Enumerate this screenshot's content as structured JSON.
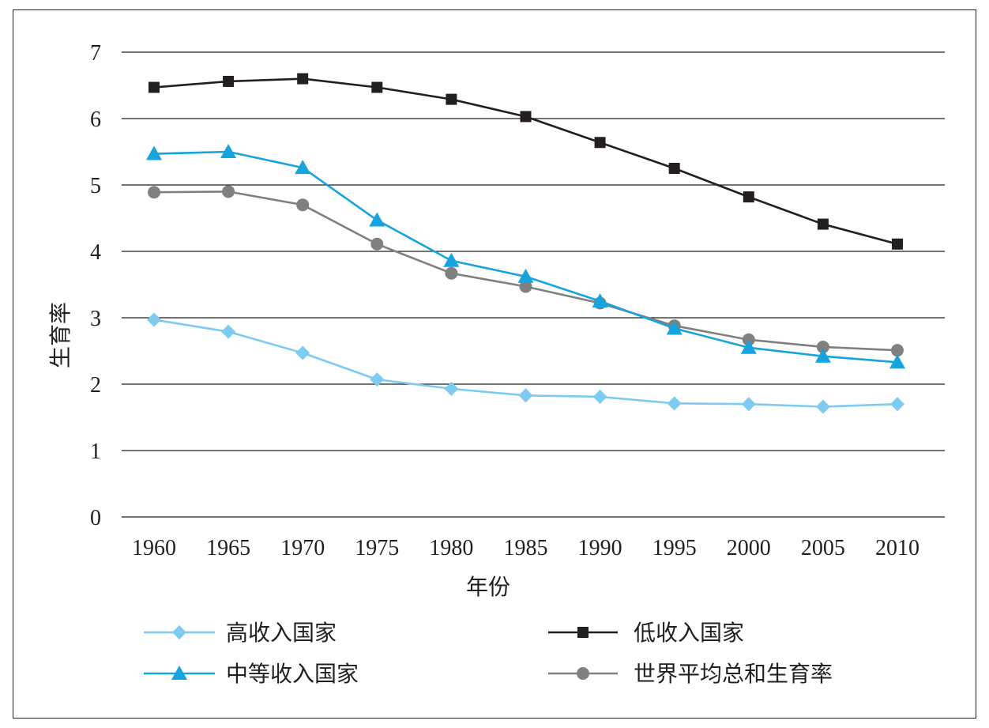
{
  "chart_data": {
    "type": "line",
    "title": "",
    "xlabel": "年份",
    "ylabel": "生育率",
    "categories": [
      "1960",
      "1965",
      "1970",
      "1975",
      "1980",
      "1985",
      "1990",
      "1995",
      "2000",
      "2005",
      "2010"
    ],
    "ylim": [
      0,
      7
    ],
    "yticks": [
      "0",
      "1",
      "2",
      "3",
      "4",
      "5",
      "6",
      "7"
    ],
    "grid": true,
    "legend_position": "bottom",
    "series": [
      {
        "name": "高收入国家",
        "marker": "diamond",
        "color": "#7dcbf0",
        "values": [
          2.97,
          2.79,
          2.47,
          2.07,
          1.93,
          1.83,
          1.81,
          1.71,
          1.7,
          1.66,
          1.7
        ]
      },
      {
        "name": "低收入国家",
        "marker": "square",
        "color": "#231f20",
        "values": [
          6.47,
          6.56,
          6.6,
          6.47,
          6.29,
          6.03,
          5.64,
          5.25,
          4.82,
          4.41,
          4.11
        ]
      },
      {
        "name": "中等收入国家",
        "marker": "triangle",
        "color": "#15a4dd",
        "values": [
          5.47,
          5.5,
          5.26,
          4.47,
          3.86,
          3.62,
          3.25,
          2.84,
          2.55,
          2.42,
          2.33
        ]
      },
      {
        "name": "世界平均总和生育率",
        "marker": "circle",
        "color": "#808080",
        "values": [
          4.89,
          4.9,
          4.7,
          4.11,
          3.67,
          3.47,
          3.22,
          2.88,
          2.67,
          2.56,
          2.51
        ]
      }
    ]
  }
}
